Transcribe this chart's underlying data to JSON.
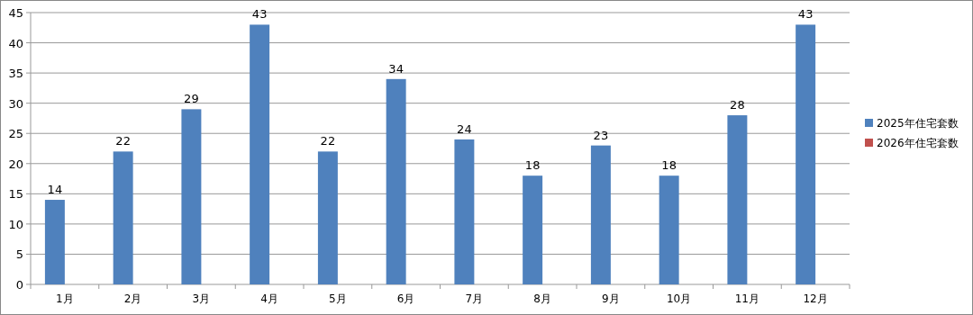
{
  "chart_data": {
    "type": "bar",
    "categories": [
      "1月",
      "2月",
      "3月",
      "4月",
      "5月",
      "6月",
      "7月",
      "8月",
      "9月",
      "10月",
      "11月",
      "12月"
    ],
    "series": [
      {
        "name": "2025年住宅套数",
        "color": "#4f81bd",
        "values": [
          14,
          22,
          29,
          43,
          22,
          34,
          24,
          18,
          23,
          18,
          28,
          43
        ]
      },
      {
        "name": "2026年住宅套数",
        "color": "#c0504d",
        "values": [
          null,
          null,
          null,
          null,
          null,
          null,
          null,
          null,
          null,
          null,
          null,
          null
        ]
      }
    ],
    "ylim": [
      0,
      45
    ],
    "yticks": [
      0,
      5,
      10,
      15,
      20,
      25,
      30,
      35,
      40,
      45
    ],
    "grid": "y",
    "legend": "right",
    "data_labels": true
  }
}
